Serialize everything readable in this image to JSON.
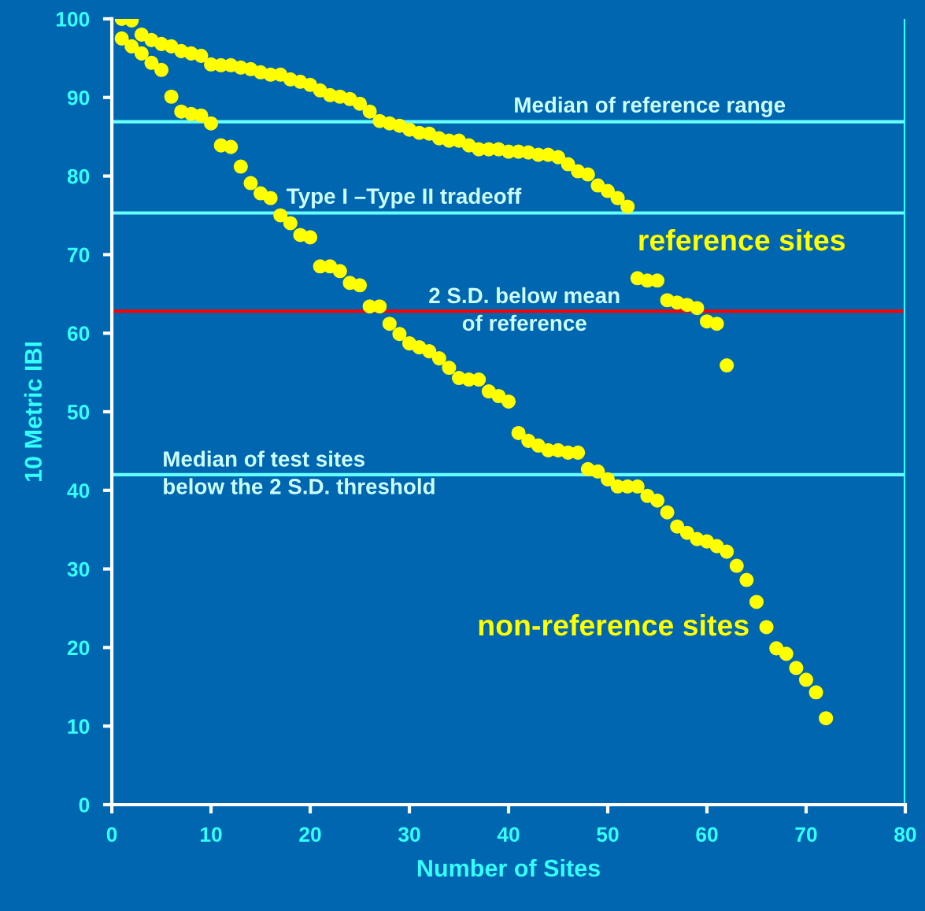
{
  "chart_data": {
    "type": "scatter",
    "xlabel": "Number of Sites",
    "ylabel": "10 Metric IBI",
    "xlim": [
      0,
      80
    ],
    "xticks": [
      0,
      10,
      20,
      30,
      40,
      50,
      60,
      70,
      80
    ],
    "ylim": [
      0,
      100
    ],
    "yticks": [
      0,
      10,
      20,
      30,
      40,
      50,
      60,
      70,
      80,
      90,
      100
    ],
    "grid": false,
    "legend": false,
    "marker": "circle",
    "series": [
      {
        "name": "reference sites",
        "color": "#ffff00",
        "x": [
          1,
          2,
          3,
          4,
          5,
          6,
          7,
          8,
          9,
          10,
          11,
          12,
          13,
          14,
          15,
          16,
          17,
          18,
          19,
          20,
          21,
          22,
          23,
          24,
          25,
          26,
          27,
          28,
          29,
          30,
          31,
          32,
          33,
          34,
          35,
          36,
          37,
          38,
          39,
          40,
          41,
          42,
          43,
          44,
          45,
          46,
          47,
          48,
          49,
          50,
          51,
          52,
          53,
          54,
          55,
          56,
          57,
          58,
          59,
          60,
          61,
          62
        ],
        "values": [
          100,
          99.8,
          98,
          97.3,
          96.8,
          96.5,
          95.9,
          95.6,
          95.3,
          94.2,
          94.1,
          94.1,
          93.8,
          93.6,
          93.2,
          92.9,
          92.9,
          92.3,
          92,
          91.6,
          90.9,
          90.3,
          90.1,
          89.8,
          89.2,
          88.2,
          87,
          86.7,
          86.4,
          85.9,
          85.5,
          85.4,
          84.8,
          84.5,
          84.5,
          83.9,
          83.4,
          83.4,
          83.4,
          83.1,
          83.1,
          83,
          82.7,
          82.7,
          82.4,
          81.5,
          80.6,
          80.2,
          78.8,
          78.1,
          77.2,
          76.1,
          67,
          66.7,
          66.7,
          64.2,
          63.9,
          63.6,
          63.2,
          61.5,
          61.2,
          55.9
        ]
      },
      {
        "name": "non-reference sites",
        "color": "#ffff00",
        "x": [
          1,
          2,
          3,
          4,
          5,
          6,
          7,
          8,
          9,
          10,
          11,
          12,
          13,
          14,
          15,
          16,
          17,
          18,
          19,
          20,
          21,
          22,
          23,
          24,
          25,
          26,
          27,
          28,
          29,
          30,
          31,
          32,
          33,
          34,
          35,
          36,
          37,
          38,
          39,
          40,
          41,
          42,
          43,
          44,
          45,
          46,
          47,
          48,
          49,
          50,
          51,
          52,
          53,
          54,
          55,
          56,
          57,
          58,
          59,
          60,
          61,
          62,
          63,
          64,
          65,
          66,
          67,
          68,
          69,
          70,
          71,
          72
        ],
        "values": [
          97.5,
          96.5,
          95.6,
          94.4,
          93.5,
          90.1,
          88.2,
          87.9,
          87.7,
          86.7,
          83.9,
          83.7,
          81.2,
          79.1,
          77.8,
          77.2,
          75,
          74,
          72.5,
          72.2,
          68.5,
          68.5,
          67.9,
          66.4,
          66.1,
          63.4,
          63.4,
          61.2,
          59.9,
          58.7,
          58.2,
          57.7,
          56.8,
          55.6,
          54.3,
          54.1,
          54.1,
          52.6,
          52,
          51.3,
          47.3,
          46.3,
          45.7,
          45.1,
          45.1,
          44.8,
          44.8,
          42.7,
          42.4,
          41.4,
          40.5,
          40.5,
          40.5,
          39.3,
          38.7,
          37.2,
          35.4,
          34.6,
          33.8,
          33.5,
          32.9,
          32.2,
          30.4,
          28.6,
          25.8,
          22.6,
          19.9,
          19.2,
          17.4,
          15.9,
          14.3,
          11
        ]
      }
    ],
    "ref_lines": [
      {
        "axis": "y",
        "value": 86.9,
        "label": "Median of reference range",
        "color": "#66ffff"
      },
      {
        "axis": "y",
        "value": 75.3,
        "label": "Type I –Type II tradeoff",
        "color": "#66ffff"
      },
      {
        "axis": "y",
        "value": 62.8,
        "label": "2 S.D. below mean\nof reference",
        "color": "#ff0000"
      },
      {
        "axis": "y",
        "value": 42,
        "label": "Median of test sites\nbelow the 2 S.D. threshold",
        "color": "#66ffff"
      },
      {
        "axis": "x",
        "value": 80,
        "color": "#33ffff"
      }
    ]
  }
}
